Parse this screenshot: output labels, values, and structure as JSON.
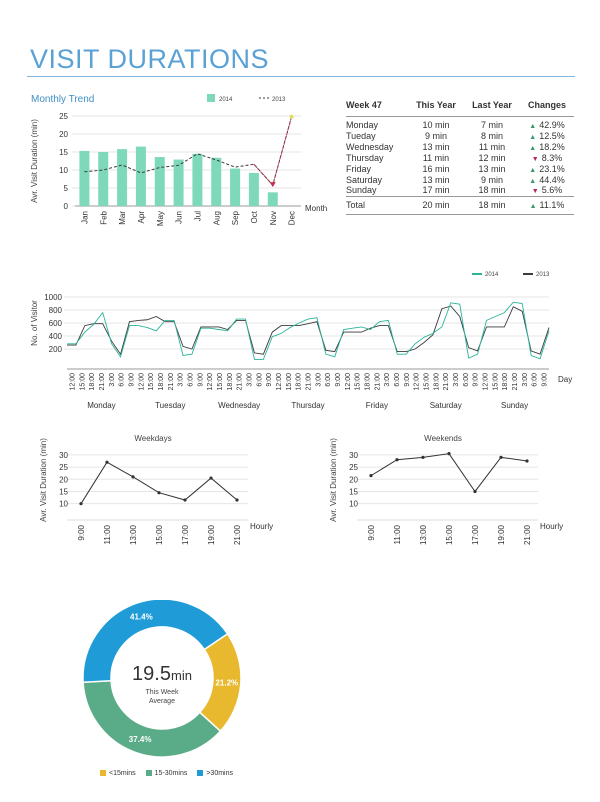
{
  "page": {
    "title": "VISIT DURATIONS"
  },
  "colors": {
    "teal": "#7ed9bb",
    "teal_line": "#2bb49a",
    "dark_line": "#3a3a3a",
    "red_marker": "#c0304d",
    "yellow_marker": "#e0e060",
    "blue": "#1f9bd7",
    "green": "#5aab88",
    "gold": "#e8b92e",
    "title_blue": "#5aa2d6"
  },
  "chart_data": [
    {
      "id": "monthly",
      "type": "bar",
      "title": "Monthly Trend",
      "ylabel": "Avr. Visit Duration (min)",
      "xlabel": "Month",
      "ylim": [
        0,
        25
      ],
      "yticks": [
        0,
        5,
        10,
        15,
        20,
        25
      ],
      "categories": [
        "Jan",
        "Feb",
        "Mar",
        "Apr",
        "May",
        "Jun",
        "Jul",
        "Aug",
        "Sep",
        "Oct",
        "Nov",
        "Dec"
      ],
      "series": [
        {
          "name": "2014",
          "kind": "bar",
          "values": [
            15.3,
            15.0,
            15.8,
            16.5,
            13.6,
            12.9,
            14.5,
            13.4,
            10.4,
            9.2,
            3.8,
            null
          ]
        },
        {
          "name": "2013",
          "kind": "dashed-line",
          "values": [
            9.5,
            10.0,
            11.4,
            9.2,
            10.7,
            11.3,
            14.5,
            12.8,
            10.8,
            11.6,
            5.8,
            24.8
          ]
        }
      ]
    },
    {
      "id": "daily",
      "type": "line",
      "ylabel": "No. of Visitor",
      "xlabel": "Day",
      "ylim": [
        0,
        1000
      ],
      "yticks": [
        200,
        400,
        600,
        800,
        1000
      ],
      "hour_ticks": [
        "12:00",
        "15:00",
        "18:00",
        "21:00",
        "3:00",
        "6:00",
        "9:00"
      ],
      "days": [
        "Monday",
        "Tuesday",
        "Wednesday",
        "Thursday",
        "Friday",
        "Saturday",
        "Sunday"
      ],
      "series": [
        {
          "name": "2014",
          "values": [
            280,
            280,
            460,
            580,
            760,
            280,
            80,
            560,
            560,
            530,
            480,
            640,
            640,
            100,
            120,
            520,
            520,
            500,
            480,
            660,
            660,
            40,
            40,
            390,
            440,
            530,
            600,
            660,
            680,
            120,
            80,
            500,
            520,
            540,
            500,
            620,
            640,
            120,
            120,
            280,
            380,
            440,
            540,
            910,
            890,
            60,
            120,
            640,
            700,
            760,
            920,
            900,
            100,
            50,
            480
          ]
        },
        {
          "name": "2013",
          "values": [
            260,
            260,
            560,
            590,
            590,
            320,
            120,
            620,
            640,
            650,
            700,
            620,
            620,
            240,
            200,
            540,
            540,
            540,
            500,
            640,
            640,
            140,
            120,
            460,
            560,
            560,
            560,
            590,
            620,
            180,
            160,
            460,
            460,
            460,
            520,
            560,
            560,
            160,
            160,
            200,
            300,
            420,
            820,
            860,
            700,
            220,
            170,
            540,
            540,
            540,
            850,
            780,
            170,
            120,
            530
          ]
        }
      ]
    },
    {
      "id": "weekdays",
      "type": "line",
      "title": "Weekdays",
      "ylabel": "Avr. Visit Duration (min)",
      "xlabel": "Hourly",
      "ylim": [
        7,
        32
      ],
      "yticks": [
        10,
        15,
        20,
        25,
        30
      ],
      "categories": [
        "9:00",
        "11:00",
        "13:00",
        "15:00",
        "17:00",
        "19:00",
        "21:00"
      ],
      "values": [
        10,
        27,
        21,
        14.5,
        11.5,
        20.5,
        11.5
      ]
    },
    {
      "id": "weekends",
      "type": "line",
      "title": "Weekends",
      "ylabel": "Avr. Visit Duration (min)",
      "xlabel": "Hourly",
      "ylim": [
        7,
        32
      ],
      "yticks": [
        10,
        15,
        20,
        25,
        30
      ],
      "categories": [
        "9:00",
        "11:00",
        "13:00",
        "15:00",
        "17:00",
        "19:00",
        "21:00"
      ],
      "values": [
        21.5,
        28,
        29,
        30.5,
        15,
        29,
        27.5
      ]
    },
    {
      "id": "donut",
      "type": "pie",
      "slices": [
        {
          "name": "<15mins",
          "value": 21.2,
          "label": "21.2%"
        },
        {
          "name": "15-30mins",
          "value": 37.4,
          "label": "37.4%"
        },
        {
          "name": ">30mins",
          "value": 41.4,
          "label": "41.4%"
        }
      ],
      "center": {
        "value": "19.5",
        "unit": "min",
        "caption1": "This Week",
        "caption2": "Average"
      }
    }
  ],
  "week_table": {
    "headers": [
      "Week 47",
      "This Year",
      "Last Year",
      "Changes"
    ],
    "rows": [
      {
        "day": "Monday",
        "this_year": "10 min",
        "last_year": "7 min",
        "change": "42.9%",
        "dir": "up"
      },
      {
        "day": "Tueday",
        "this_year": "9 min",
        "last_year": "8 min",
        "change": "12.5%",
        "dir": "up"
      },
      {
        "day": "Wednesday",
        "this_year": "13 min",
        "last_year": "11 min",
        "change": "18.2%",
        "dir": "up"
      },
      {
        "day": "Thursday",
        "this_year": "11 min",
        "last_year": "12 min",
        "change": "8.3%",
        "dir": "down"
      },
      {
        "day": "Friday",
        "this_year": "16 min",
        "last_year": "13 min",
        "change": "23.1%",
        "dir": "up"
      },
      {
        "day": "Saturday",
        "this_year": "13 min",
        "last_year": "9 min",
        "change": "44.4%",
        "dir": "up"
      },
      {
        "day": "Sunday",
        "this_year": "17 min",
        "last_year": "18 min",
        "change": "5.6%",
        "dir": "down"
      }
    ],
    "total": {
      "day": "Total",
      "this_year": "20 min",
      "last_year": "18 min",
      "change": "11.1%",
      "dir": "up"
    }
  },
  "glyphs": {
    "up": "▲",
    "down": "▼"
  }
}
